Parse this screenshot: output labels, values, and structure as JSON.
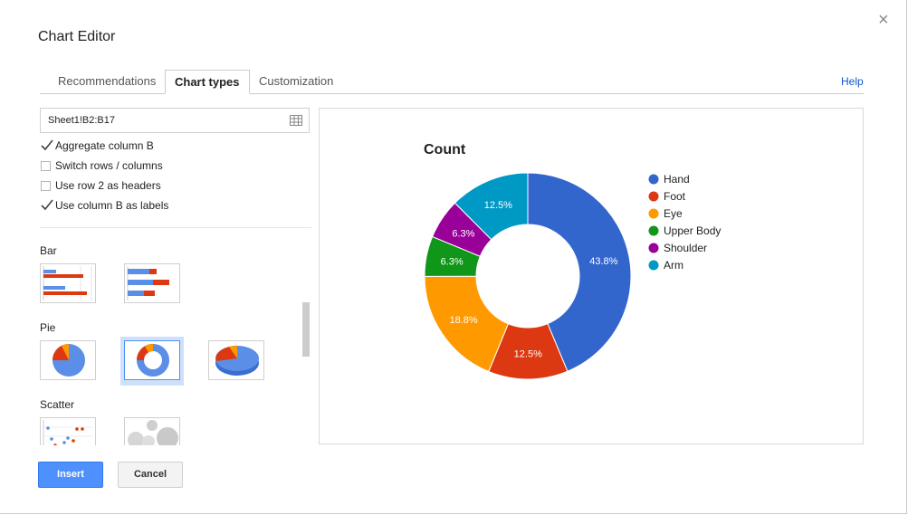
{
  "dialog": {
    "title": "Chart Editor",
    "close_glyph": "×"
  },
  "tabs": [
    {
      "label": "Recommendations",
      "active": false
    },
    {
      "label": "Chart types",
      "active": true
    },
    {
      "label": "Customization",
      "active": false
    }
  ],
  "help_label": "Help",
  "data_range": "Sheet1!B2:B17",
  "options": [
    {
      "label": "Aggregate column B",
      "checked": true
    },
    {
      "label": "Switch rows / columns",
      "checked": false
    },
    {
      "label": "Use row 2 as headers",
      "checked": false
    },
    {
      "label": "Use column B as labels",
      "checked": true
    }
  ],
  "chart_types": {
    "bar_label": "Bar",
    "pie_label": "Pie",
    "scatter_label": "Scatter"
  },
  "buttons": {
    "insert": "Insert",
    "cancel": "Cancel"
  },
  "colors": {
    "Hand": "#3366cc",
    "Foot": "#dc3912",
    "Eye": "#ff9900",
    "Upper Body": "#109618",
    "Shoulder": "#990099",
    "Arm": "#0099c6",
    "accent": "#4d90fe"
  },
  "chart_data": {
    "type": "pie",
    "variant": "donut",
    "title": "Count",
    "legend_position": "right",
    "categories": [
      "Hand",
      "Foot",
      "Eye",
      "Upper Body",
      "Shoulder",
      "Arm"
    ],
    "values": [
      43.8,
      12.5,
      18.8,
      6.3,
      6.3,
      12.5
    ],
    "labels": [
      "43.8%",
      "12.5%",
      "18.8%",
      "6.3%",
      "6.3%",
      "12.5%"
    ]
  }
}
